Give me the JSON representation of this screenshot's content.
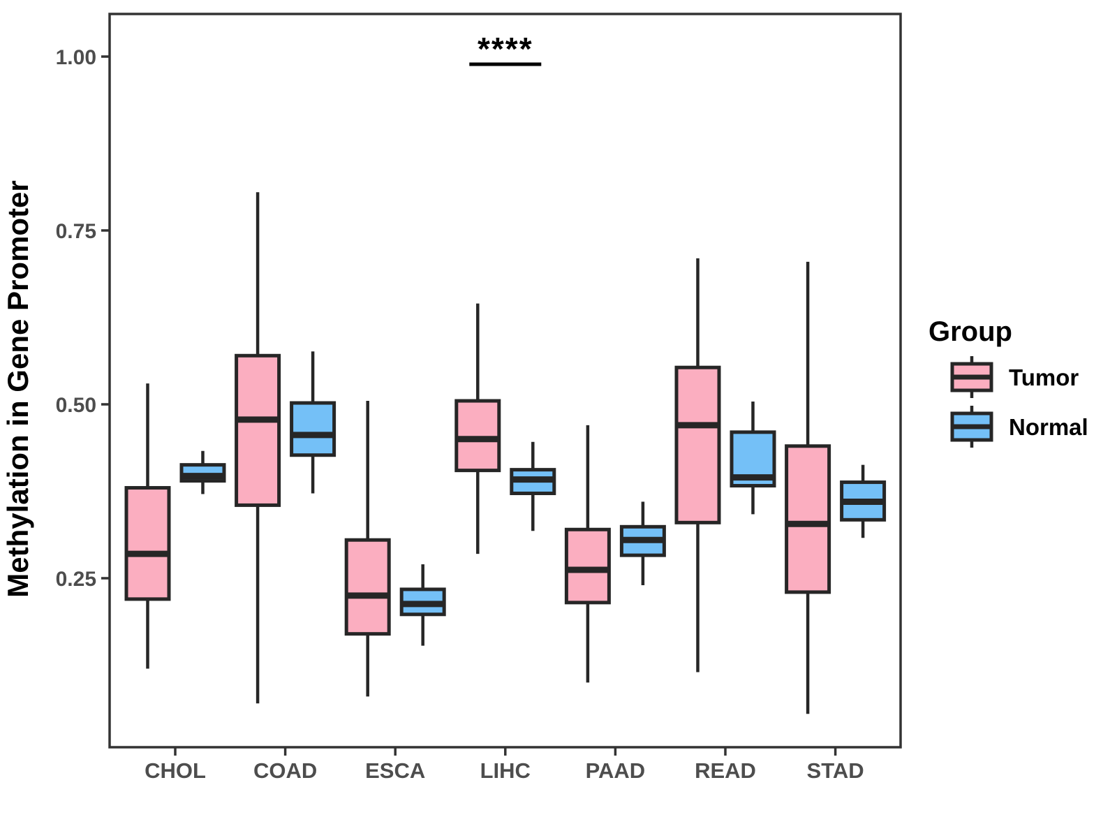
{
  "chart_data": {
    "type": "boxplot",
    "title": "",
    "xlabel": "",
    "ylabel": "Methylation in Gene Promoter",
    "categories": [
      "CHOL",
      "COAD",
      "ESCA",
      "LIHC",
      "PAAD",
      "READ",
      "STAD"
    ],
    "ytick_labels": [
      "1.00",
      "0.75",
      "0.50",
      "0.25"
    ],
    "ytick_values": [
      1.0,
      0.75,
      0.5,
      0.25
    ],
    "ylim": [
      0.0,
      1.06
    ],
    "grid": false,
    "legend": {
      "title": "Group",
      "position": "right",
      "entries": [
        {
          "label": "Tumor",
          "fill": "#FBAEC0"
        },
        {
          "label": "Normal",
          "fill": "#74C0F7"
        }
      ]
    },
    "colors": {
      "tumor_fill": "#FBAEC0",
      "normal_fill": "#74C0F7",
      "box_border": "#262626",
      "axis": "#333333",
      "tick_text": "#4d4d4d"
    },
    "series": [
      {
        "name": "Tumor",
        "fill": "#FBAEC0",
        "values": [
          {
            "category": "CHOL",
            "whisker_low": 0.12,
            "q1": 0.22,
            "median": 0.285,
            "q3": 0.38,
            "whisker_high": 0.53
          },
          {
            "category": "COAD",
            "whisker_low": 0.07,
            "q1": 0.355,
            "median": 0.478,
            "q3": 0.57,
            "whisker_high": 0.805
          },
          {
            "category": "ESCA",
            "whisker_low": 0.08,
            "q1": 0.17,
            "median": 0.225,
            "q3": 0.305,
            "whisker_high": 0.505
          },
          {
            "category": "LIHC",
            "whisker_low": 0.285,
            "q1": 0.405,
            "median": 0.45,
            "q3": 0.505,
            "whisker_high": 0.645
          },
          {
            "category": "PAAD",
            "whisker_low": 0.1,
            "q1": 0.215,
            "median": 0.262,
            "q3": 0.32,
            "whisker_high": 0.47
          },
          {
            "category": "READ",
            "whisker_low": 0.115,
            "q1": 0.33,
            "median": 0.47,
            "q3": 0.553,
            "whisker_high": 0.71
          },
          {
            "category": "STAD",
            "whisker_low": 0.055,
            "q1": 0.23,
            "median": 0.328,
            "q3": 0.44,
            "whisker_high": 0.705
          }
        ]
      },
      {
        "name": "Normal",
        "fill": "#74C0F7",
        "values": [
          {
            "category": "CHOL",
            "whisker_low": 0.371,
            "q1": 0.39,
            "median": 0.397,
            "q3": 0.413,
            "whisker_high": 0.433
          },
          {
            "category": "COAD",
            "whisker_low": 0.372,
            "q1": 0.427,
            "median": 0.456,
            "q3": 0.502,
            "whisker_high": 0.576
          },
          {
            "category": "ESCA",
            "whisker_low": 0.153,
            "q1": 0.198,
            "median": 0.213,
            "q3": 0.234,
            "whisker_high": 0.27
          },
          {
            "category": "LIHC",
            "whisker_low": 0.318,
            "q1": 0.372,
            "median": 0.392,
            "q3": 0.406,
            "whisker_high": 0.446
          },
          {
            "category": "PAAD",
            "whisker_low": 0.24,
            "q1": 0.283,
            "median": 0.305,
            "q3": 0.324,
            "whisker_high": 0.36
          },
          {
            "category": "READ",
            "whisker_low": 0.342,
            "q1": 0.383,
            "median": 0.395,
            "q3": 0.46,
            "whisker_high": 0.504
          },
          {
            "category": "STAD",
            "whisker_low": 0.308,
            "q1": 0.334,
            "median": 0.36,
            "q3": 0.388,
            "whisker_high": 0.413
          }
        ]
      }
    ],
    "annotations": [
      {
        "type": "significance",
        "text": "****",
        "category": "LIHC"
      }
    ]
  }
}
